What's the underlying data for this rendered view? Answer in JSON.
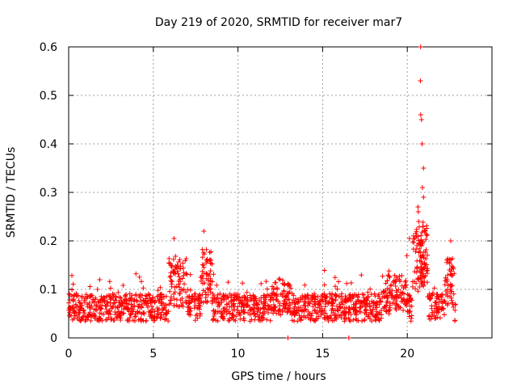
{
  "chart_data": {
    "type": "scatter",
    "title": "Day 219 of 2020, SRMTID for receiver mar7",
    "xlabel": "GPS time / hours",
    "ylabel": "SRMTID / TECUs",
    "xlim": [
      0,
      25
    ],
    "ylim": [
      0,
      0.6
    ],
    "xticks": [
      0,
      5,
      10,
      15,
      20
    ],
    "xtick_labels": [
      "0",
      "5",
      "10",
      "15",
      "20"
    ],
    "yticks": [
      0,
      0.1,
      0.2,
      0.3,
      0.4,
      0.5,
      0.6
    ],
    "ytick_labels": [
      "0",
      "0.1",
      "0.2",
      "0.3",
      "0.4",
      "0.5",
      "0.6"
    ],
    "grid": true,
    "marker": "+",
    "color": "#ff0000",
    "series": [
      {
        "name": "SRMTID",
        "x": [
          0.0,
          0.1,
          0.2,
          0.3,
          0.4,
          0.5,
          0.6,
          0.7,
          0.8,
          0.9,
          1.0,
          1.1,
          1.2,
          1.3,
          1.4,
          1.5,
          1.6,
          1.7,
          1.8,
          1.9,
          2.0,
          2.1,
          2.2,
          2.3,
          2.4,
          2.5,
          2.6,
          2.7,
          2.8,
          2.9,
          3.0,
          3.1,
          3.2,
          3.3,
          3.4,
          3.5,
          3.6,
          3.7,
          3.8,
          3.9,
          4.0,
          4.1,
          4.2,
          4.3,
          4.4,
          4.5,
          4.6,
          4.7,
          4.8,
          4.9,
          5.0,
          5.1,
          5.2,
          5.3,
          5.4,
          5.5,
          5.6,
          5.7,
          5.8,
          5.9,
          6.0,
          6.1,
          6.2,
          6.3,
          6.4,
          6.5,
          6.6,
          6.7,
          6.8,
          6.9,
          7.0,
          7.1,
          7.2,
          7.3,
          7.4,
          7.5,
          7.6,
          7.7,
          7.8,
          7.9,
          8.0,
          8.1,
          8.2,
          8.3,
          8.4,
          8.5,
          8.6,
          8.7,
          8.8,
          8.9,
          9.0,
          9.1,
          9.2,
          9.3,
          9.4,
          9.5,
          9.6,
          9.7,
          9.8,
          9.9,
          10.0,
          10.1,
          10.2,
          10.3,
          10.4,
          10.5,
          10.6,
          10.7,
          10.8,
          10.9,
          11.0,
          11.1,
          11.2,
          11.3,
          11.4,
          11.5,
          11.6,
          11.7,
          11.8,
          11.9,
          12.0,
          12.1,
          12.2,
          12.3,
          12.4,
          12.5,
          12.6,
          12.7,
          12.8,
          12.9,
          13.0,
          13.1,
          13.2,
          13.3,
          13.4,
          13.5,
          13.6,
          13.7,
          13.8,
          13.9,
          14.0,
          14.1,
          14.2,
          14.3,
          14.4,
          14.5,
          14.6,
          14.7,
          14.8,
          14.9,
          15.0,
          15.1,
          15.2,
          15.3,
          15.4,
          15.5,
          15.6,
          15.7,
          15.8,
          15.9,
          16.0,
          16.1,
          16.2,
          16.3,
          16.4,
          16.5,
          16.6,
          16.7,
          16.8,
          16.9,
          17.0,
          17.1,
          17.2,
          17.3,
          17.4,
          17.5,
          17.6,
          17.7,
          17.8,
          17.9,
          18.0,
          18.1,
          18.2,
          18.3,
          18.4,
          18.5,
          18.6,
          18.7,
          18.8,
          18.9,
          19.0,
          19.1,
          19.2,
          19.3,
          19.4,
          19.5,
          19.6,
          19.7,
          19.8,
          19.9,
          20.0,
          20.1,
          20.2,
          20.3,
          20.4,
          20.5,
          20.6,
          20.7,
          20.75,
          20.8,
          20.85,
          20.9,
          20.95,
          21.0,
          21.1,
          21.2,
          21.3,
          21.4,
          21.5,
          21.6,
          21.7,
          21.8,
          21.9,
          22.0,
          22.1,
          22.2,
          22.3,
          22.4,
          22.5,
          22.6,
          22.7,
          22.8,
          0.05,
          0.35,
          0.65,
          1.25,
          1.85,
          2.45,
          3.05,
          3.65,
          4.25,
          4.85,
          5.45,
          6.05,
          6.25,
          6.55,
          7.15,
          7.75,
          7.95,
          8.15,
          8.35,
          8.55,
          9.15,
          9.75,
          10.35,
          10.95,
          11.55,
          12.15,
          12.75,
          12.95,
          13.35,
          13.95,
          14.55,
          15.15,
          15.55,
          15.75,
          16.35,
          16.55,
          16.95,
          17.55,
          18.15,
          18.75,
          18.95,
          19.35,
          19.95,
          20.15,
          20.55,
          20.65,
          20.78,
          20.82,
          20.88,
          20.92,
          21.05,
          21.15,
          21.75,
          22.35,
          22.55,
          22.65
        ]
      }
    ]
  }
}
